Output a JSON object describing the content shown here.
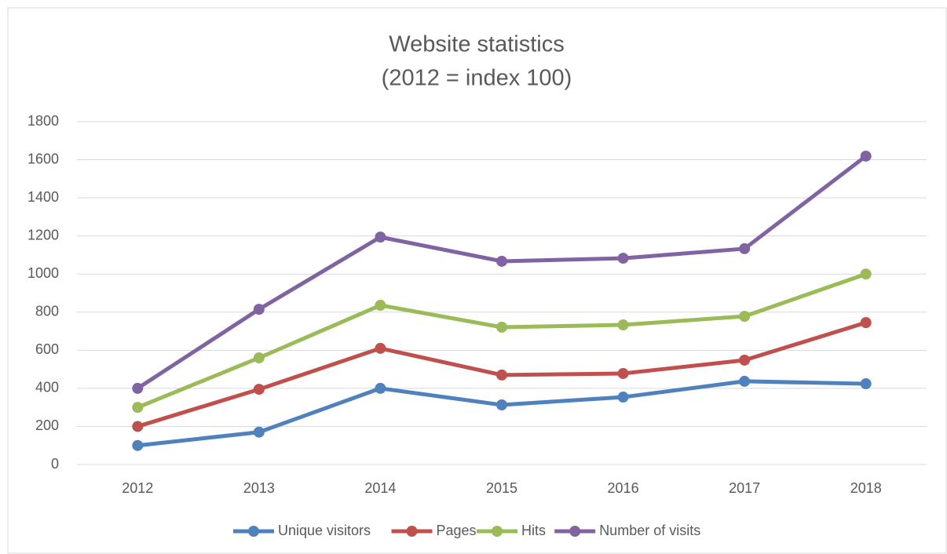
{
  "chart_data": {
    "type": "line",
    "stacked": true,
    "title": "Website statistics",
    "subtitle": "(2012 = index 100)",
    "categories": [
      "2012",
      "2013",
      "2014",
      "2015",
      "2016",
      "2017",
      "2018"
    ],
    "series": [
      {
        "name": "Unique visitors",
        "color": "#4f81bd",
        "values": [
          100,
          170,
          400,
          313,
          354,
          437,
          424
        ]
      },
      {
        "name": "Pages",
        "color": "#c0504d",
        "values": [
          100,
          225,
          210,
          157,
          124,
          111,
          321
        ]
      },
      {
        "name": "Hits",
        "color": "#9bbb59",
        "values": [
          100,
          165,
          226,
          251,
          255,
          230,
          255
        ]
      },
      {
        "name": "Number of visits",
        "color": "#8064a2",
        "values": [
          100,
          255,
          358,
          346,
          350,
          355,
          619
        ]
      }
    ],
    "ylim": [
      0,
      1800
    ],
    "yticks": [
      0,
      200,
      400,
      600,
      800,
      1000,
      1200,
      1400,
      1600,
      1800
    ],
    "grid": true,
    "legend": "bottom"
  }
}
